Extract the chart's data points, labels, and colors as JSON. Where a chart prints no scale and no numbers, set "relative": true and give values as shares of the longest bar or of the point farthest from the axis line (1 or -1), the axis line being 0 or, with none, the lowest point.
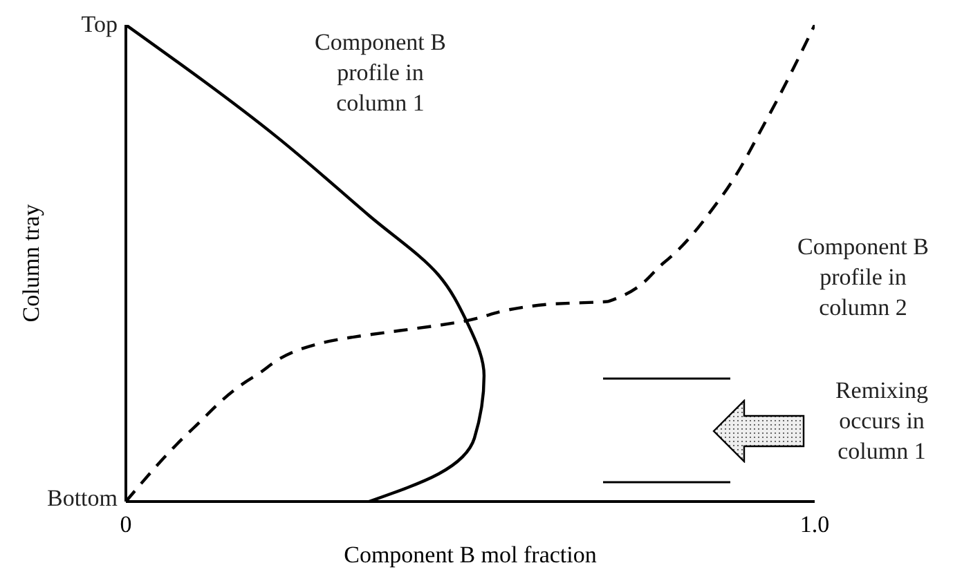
{
  "chart_data": {
    "type": "line",
    "xlabel": "Component B mol fraction",
    "ylabel": "Column tray",
    "xlim": [
      0,
      1
    ],
    "relative": true,
    "xticks": [
      0,
      {
        "value": 1,
        "label": "1.0"
      }
    ],
    "series": [
      {
        "color": "#000000",
        "line_style": "solid",
        "x": [
          0,
          0.219,
          0.353,
          0.454,
          0.494,
          0.52,
          0.506,
          0.454,
          0.353
        ],
        "values": [
          1,
          0.765,
          0.6,
          0.475,
          0.38,
          0.264,
          0.133,
          0.058,
          0
        ]
      },
      {
        "color": "#000000",
        "line_style": "dashed",
        "x": [
          0,
          0.098,
          0.185,
          0.285,
          0.486,
          0.614,
          0.701,
          0.781,
          0.861,
          0.932,
          1
        ],
        "values": [
          0,
          0.154,
          0.261,
          0.333,
          0.377,
          0.414,
          0.42,
          0.501,
          0.632,
          0.806,
          1
        ]
      }
    ],
    "annotations": [
      "Top",
      "Bottom",
      "Component B\nprofile in\ncolumn 1",
      "Component B\nprofile in\ncolumn 2",
      "Remixing\noccurs in\ncolumn 1"
    ],
    "marker": "none"
  }
}
